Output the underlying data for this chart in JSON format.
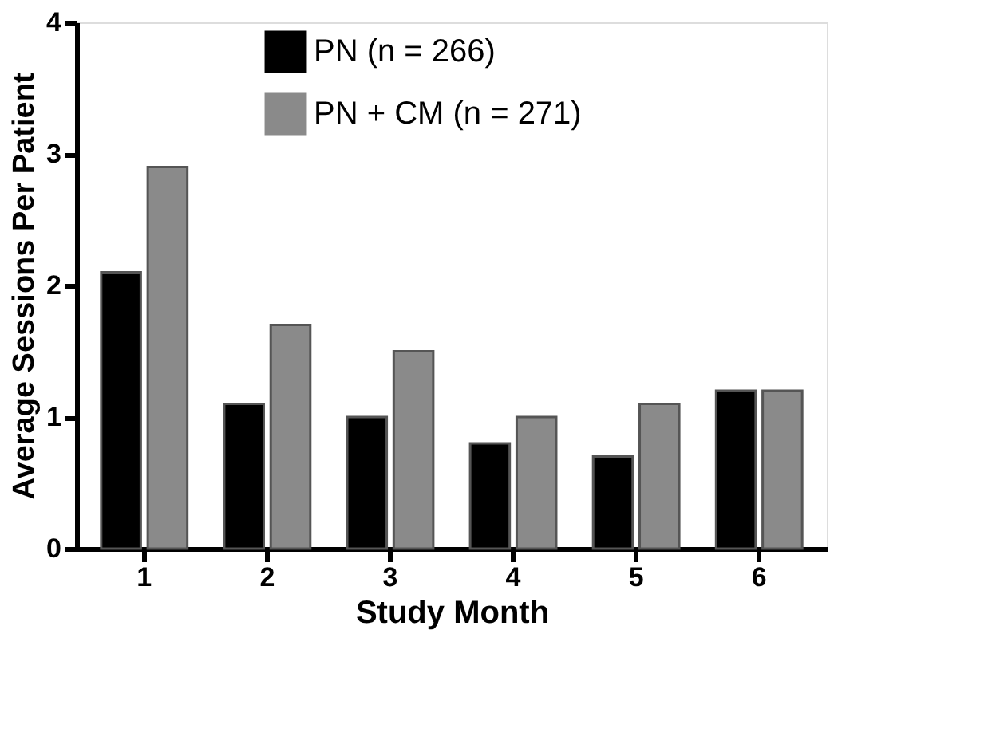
{
  "chart_data": {
    "type": "bar",
    "xlabel": "Study Month",
    "ylabel": "Average Sessions Per Patient",
    "categories": [
      "1",
      "2",
      "3",
      "4",
      "5",
      "6"
    ],
    "series": [
      {
        "name": "PN (n = 266)",
        "color": "#000000",
        "values": [
          2.1,
          1.1,
          1.0,
          0.8,
          0.7,
          1.2
        ]
      },
      {
        "name": "PN + CM (n = 271)",
        "color": "#8a8a8a",
        "values": [
          2.9,
          1.7,
          1.5,
          1.0,
          1.1,
          1.2
        ]
      }
    ],
    "ylim": [
      0,
      4
    ],
    "yticks": [
      0,
      1,
      2,
      3,
      4
    ],
    "grid": false,
    "legend": "top"
  }
}
